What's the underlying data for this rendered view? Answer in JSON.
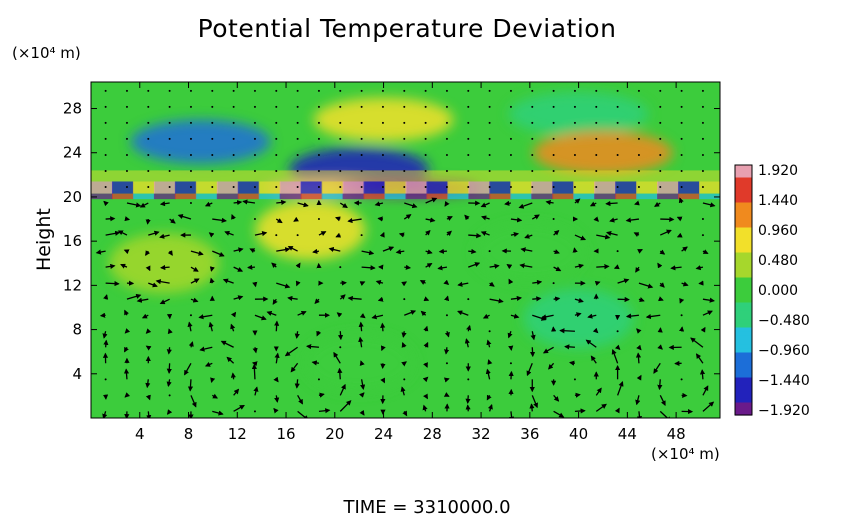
{
  "chart_data": {
    "type": "heatmap",
    "title": "Potential Temperature Deviation",
    "ylabel": "Height",
    "y_unit": "(×10⁴ m)",
    "x_unit": "(×10⁴ m)",
    "footer": "TIME = 3310000.0",
    "xlim": [
      0,
      51.6
    ],
    "ylim": [
      0,
      30.4
    ],
    "x_ticks": [
      4,
      8,
      12,
      16,
      20,
      24,
      28,
      32,
      36,
      40,
      44,
      48
    ],
    "y_ticks": [
      4,
      8,
      12,
      16,
      20,
      24,
      28
    ],
    "colorbar": {
      "ticks": [
        "1.920",
        "1.440",
        "0.960",
        "0.480",
        "0.000",
        "−0.480",
        "−0.960",
        "−1.440",
        "−1.920"
      ],
      "min": -1.92,
      "max": 1.92,
      "colors": [
        "#6a1a8a",
        "#2222bb",
        "#1c6ed8",
        "#25c0e0",
        "#2fd07a",
        "#3ccc3c",
        "#a6d72c",
        "#f2e02a",
        "#f08a1e",
        "#e03a2a",
        "#e8a0b0"
      ]
    },
    "features": [
      {
        "x": 24,
        "y": 27,
        "value": 0.9
      },
      {
        "x": 9,
        "y": 25,
        "value": -1.0
      },
      {
        "x": 40,
        "y": 27.5,
        "value": -0.5
      },
      {
        "x": 42,
        "y": 24,
        "value": 1.3
      },
      {
        "x": 22,
        "y": 22.5,
        "value": -1.4
      },
      {
        "x": 20,
        "y": 20.8,
        "value": 1.9
      },
      {
        "x": 26,
        "y": 20.8,
        "value": -1.9
      },
      {
        "x": 36,
        "y": 15,
        "value": 0.1
      },
      {
        "x": 18,
        "y": 17,
        "value": 0.9
      },
      {
        "x": 6,
        "y": 14,
        "value": 0.5
      },
      {
        "x": 22,
        "y": 5,
        "value": 0.1
      },
      {
        "x": 40,
        "y": 9,
        "value": -0.3
      }
    ],
    "vortices": [
      {
        "x": 10.5,
        "y": 3.3,
        "rx": 2.2,
        "ry": 2.8
      },
      {
        "x": 18.5,
        "y": 3.3,
        "rx": 2.0,
        "ry": 2.8
      },
      {
        "x": 39.5,
        "y": 3.5,
        "rx": 3.0,
        "ry": 3.2
      },
      {
        "x": 48.5,
        "y": 3.3,
        "rx": 2.0,
        "ry": 2.8
      }
    ]
  }
}
